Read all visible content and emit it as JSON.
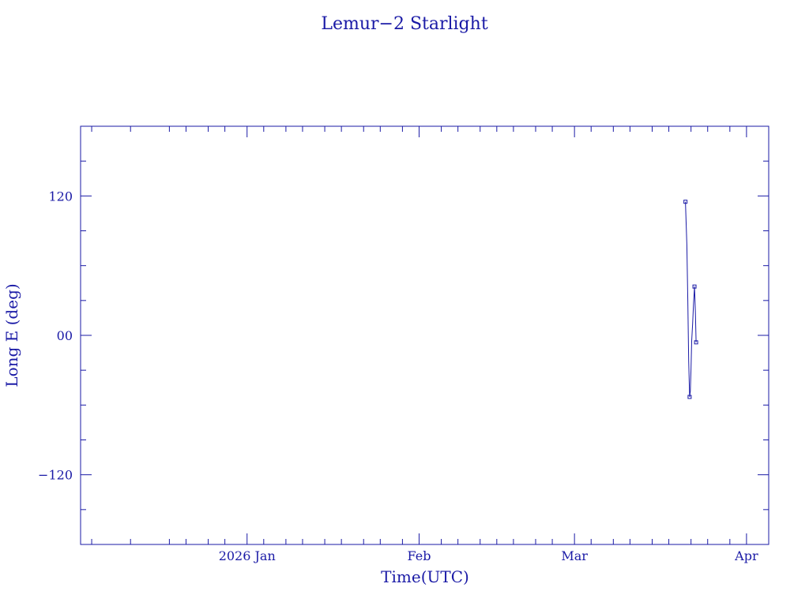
{
  "chart_data": {
    "type": "line",
    "title": "Lemur−2 Starlight",
    "xlabel": "Time(UTC)",
    "ylabel": "Long E (deg)",
    "xlim": [
      "2025-12-02",
      "2026-04-05"
    ],
    "ylim": [
      -180,
      180
    ],
    "x_ticks": [
      {
        "label": "2026 Jan",
        "value": "2026-01-01"
      },
      {
        "label": "Feb",
        "value": "2026-02-01"
      },
      {
        "label": "Mar",
        "value": "2026-03-01"
      },
      {
        "label": "Apr",
        "value": "2026-04-01"
      }
    ],
    "y_ticks": [
      {
        "label": "120",
        "value": 120
      },
      {
        "label": "00",
        "value": 0
      },
      {
        "label": "−120",
        "value": -120
      }
    ],
    "grid": false,
    "series": [
      {
        "color": "#1a1aa6",
        "x": [
          "2026-03-21T00:00",
          "2026-03-21T06:00",
          "2026-03-21T10:00",
          "2026-03-21T14:00",
          "2026-03-21T18:00",
          "2026-03-21T21:00",
          "2026-03-22T00:00",
          "2026-03-22T03:00",
          "2026-03-22T07:00",
          "2026-03-22T11:00",
          "2026-03-22T15:00",
          "2026-03-22T19:00",
          "2026-03-22T22:00"
        ],
        "y": [
          115,
          78,
          30,
          -22,
          -53,
          -48,
          -28,
          -5,
          10,
          28,
          42,
          20,
          -6
        ],
        "markers": [
          0,
          4,
          10,
          12
        ]
      }
    ]
  }
}
